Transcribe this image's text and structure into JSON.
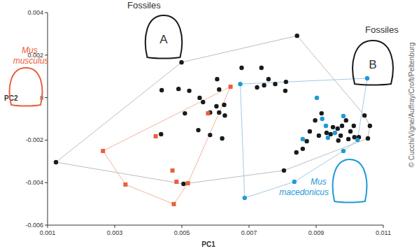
{
  "chart_data": {
    "type": "scatter",
    "x_label": "PC1",
    "y_label": "PC2",
    "xlim": [
      0.001,
      0.011
    ],
    "ylim": [
      -0.006,
      0.004
    ],
    "xticks": [
      0.001,
      0.003,
      0.005,
      0.007,
      0.009,
      0.011
    ],
    "yticks": [
      -0.006,
      -0.004,
      -0.002,
      0,
      0.002,
      0.004
    ],
    "grid": false,
    "annotations": [
      "Fossiles",
      "A",
      "B"
    ],
    "credit": "© Cucchi/Vigne/Auffray/Croft/Peltenburg",
    "series": [
      {
        "name": "Fossiles",
        "color": "#1a1a1a",
        "marker": "circle",
        "x": [
          0.00125,
          0.00499,
          0.00678,
          0.00737,
          0.0044,
          0.0049,
          0.00522,
          0.00605,
          0.00611,
          0.00758,
          0.00745,
          0.00778,
          0.00808,
          0.0081,
          0.00724,
          0.00563,
          0.00553,
          0.00603,
          0.00626,
          0.00509,
          0.00584,
          0.00611,
          0.00628,
          0.00438,
          0.00549,
          0.00584,
          0.0062,
          0.00505,
          0.00843,
          0.00804,
          0.00841,
          0.0086,
          0.00872,
          0.00881,
          0.00897,
          0.00916,
          0.00931,
          0.0095,
          0.00964,
          0.00977,
          0.01002,
          0.01014,
          0.01027,
          0.01054,
          0.0106,
          0.01044,
          0.01012,
          0.00989,
          0.00973,
          0.00996,
          0.00966,
          0.00943,
          0.00908
        ],
        "values": [
          -0.00304,
          0.00166,
          0.0014,
          0.0014,
          0.00035,
          0.00041,
          0.00032,
          0.00087,
          0.00038,
          0.00087,
          0.00058,
          0.00064,
          0.00032,
          0.00074,
          0.00048,
          -0.00021,
          -1e-05,
          -0.00041,
          -0.00034,
          -0.00074,
          -0.0007,
          -0.0007,
          -0.00084,
          -0.00172,
          -0.00153,
          -0.00176,
          -0.00192,
          -0.00406,
          0.00291,
          -0.00343,
          -0.00258,
          -0.00241,
          -0.00205,
          -0.00159,
          -0.00107,
          -0.00074,
          -0.00166,
          -0.00139,
          -0.00146,
          -0.00133,
          -0.00159,
          -0.00186,
          -0.00186,
          -0.00192,
          -0.00133,
          -0.00084,
          -0.00133,
          -0.00107,
          -0.00179,
          -0.00195,
          -0.00202,
          -0.00172,
          -0.00179
        ]
      },
      {
        "name": "Mus musculus",
        "color": "#e8603c",
        "marker": "square",
        "x": [
          0.00265,
          0.00422,
          0.00332,
          0.00472,
          0.00484,
          0.00476,
          0.00645,
          0.00578,
          0.00518
        ],
        "values": [
          -0.00251,
          -0.00182,
          -0.00409,
          -0.00343,
          -0.00396,
          -0.00501,
          0.00051,
          -0.00074,
          -0.00403
        ]
      },
      {
        "name": "Mus macedonicus",
        "color": "#1f9ad6",
        "marker": "circle",
        "x": [
          0.00674,
          0.01052,
          0.00902,
          0.00981,
          0.00918,
          0.00929,
          0.00956,
          0.00935,
          0.0086,
          0.01023,
          0.00981,
          0.00835,
          0.00687
        ],
        "values": [
          0.00064,
          0.00091,
          -1e-05,
          -0.00087,
          -0.001,
          -0.00133,
          -0.00166,
          -0.00189,
          -0.00195,
          -0.00199,
          -0.00251,
          -0.00396,
          -0.00472
        ]
      }
    ]
  }
}
